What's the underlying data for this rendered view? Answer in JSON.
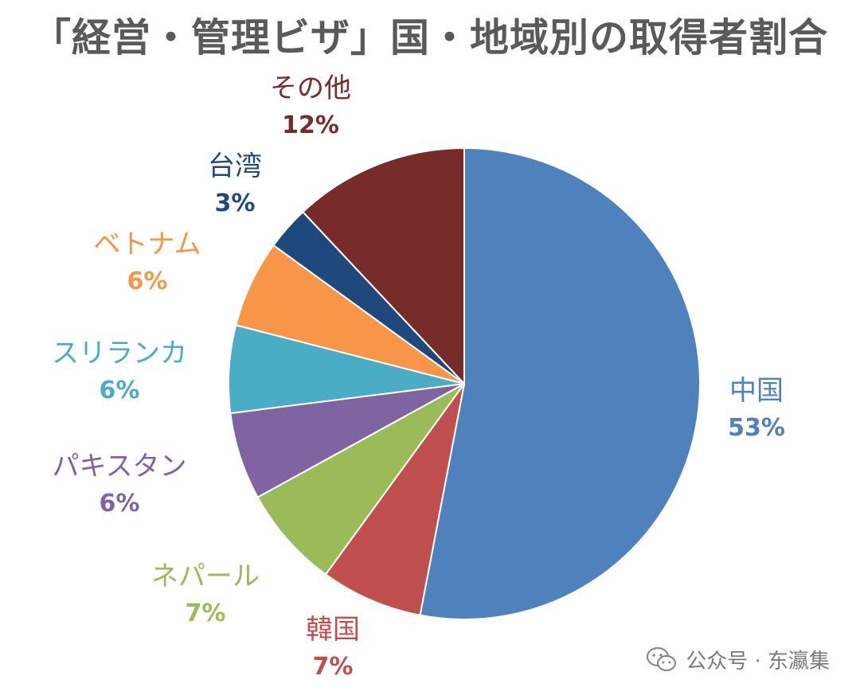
{
  "chart_data": {
    "type": "pie",
    "title": "「経営・管理ビザ」国・地域別の取得者割合",
    "slices": [
      {
        "label": "中国",
        "pct_text": "53%",
        "value": 53,
        "color": "#4f81bd"
      },
      {
        "label": "韓国",
        "pct_text": "7%",
        "value": 7,
        "color": "#c0504d"
      },
      {
        "label": "ネパール",
        "pct_text": "7%",
        "value": 7,
        "color": "#9bbb59"
      },
      {
        "label": "パキスタン",
        "pct_text": "6%",
        "value": 6,
        "color": "#8064a2"
      },
      {
        "label": "スリランカ",
        "pct_text": "6%",
        "value": 6,
        "color": "#4bacc6"
      },
      {
        "label": "ベトナム",
        "pct_text": "6%",
        "value": 6,
        "color": "#f79646"
      },
      {
        "label": "台湾",
        "pct_text": "3%",
        "value": 3,
        "color": "#1f497d"
      },
      {
        "label": "その他",
        "pct_text": "12%",
        "value": 12,
        "color": "#772c2a"
      }
    ],
    "label_colors": [
      "#4f81bd",
      "#c0504d",
      "#9bbb59",
      "#8064a2",
      "#4bacc6",
      "#f79646",
      "#1f497d",
      "#772c2a"
    ]
  },
  "watermark": {
    "text": "公众号 · 东瀛集",
    "icon": "wechat-icon"
  }
}
